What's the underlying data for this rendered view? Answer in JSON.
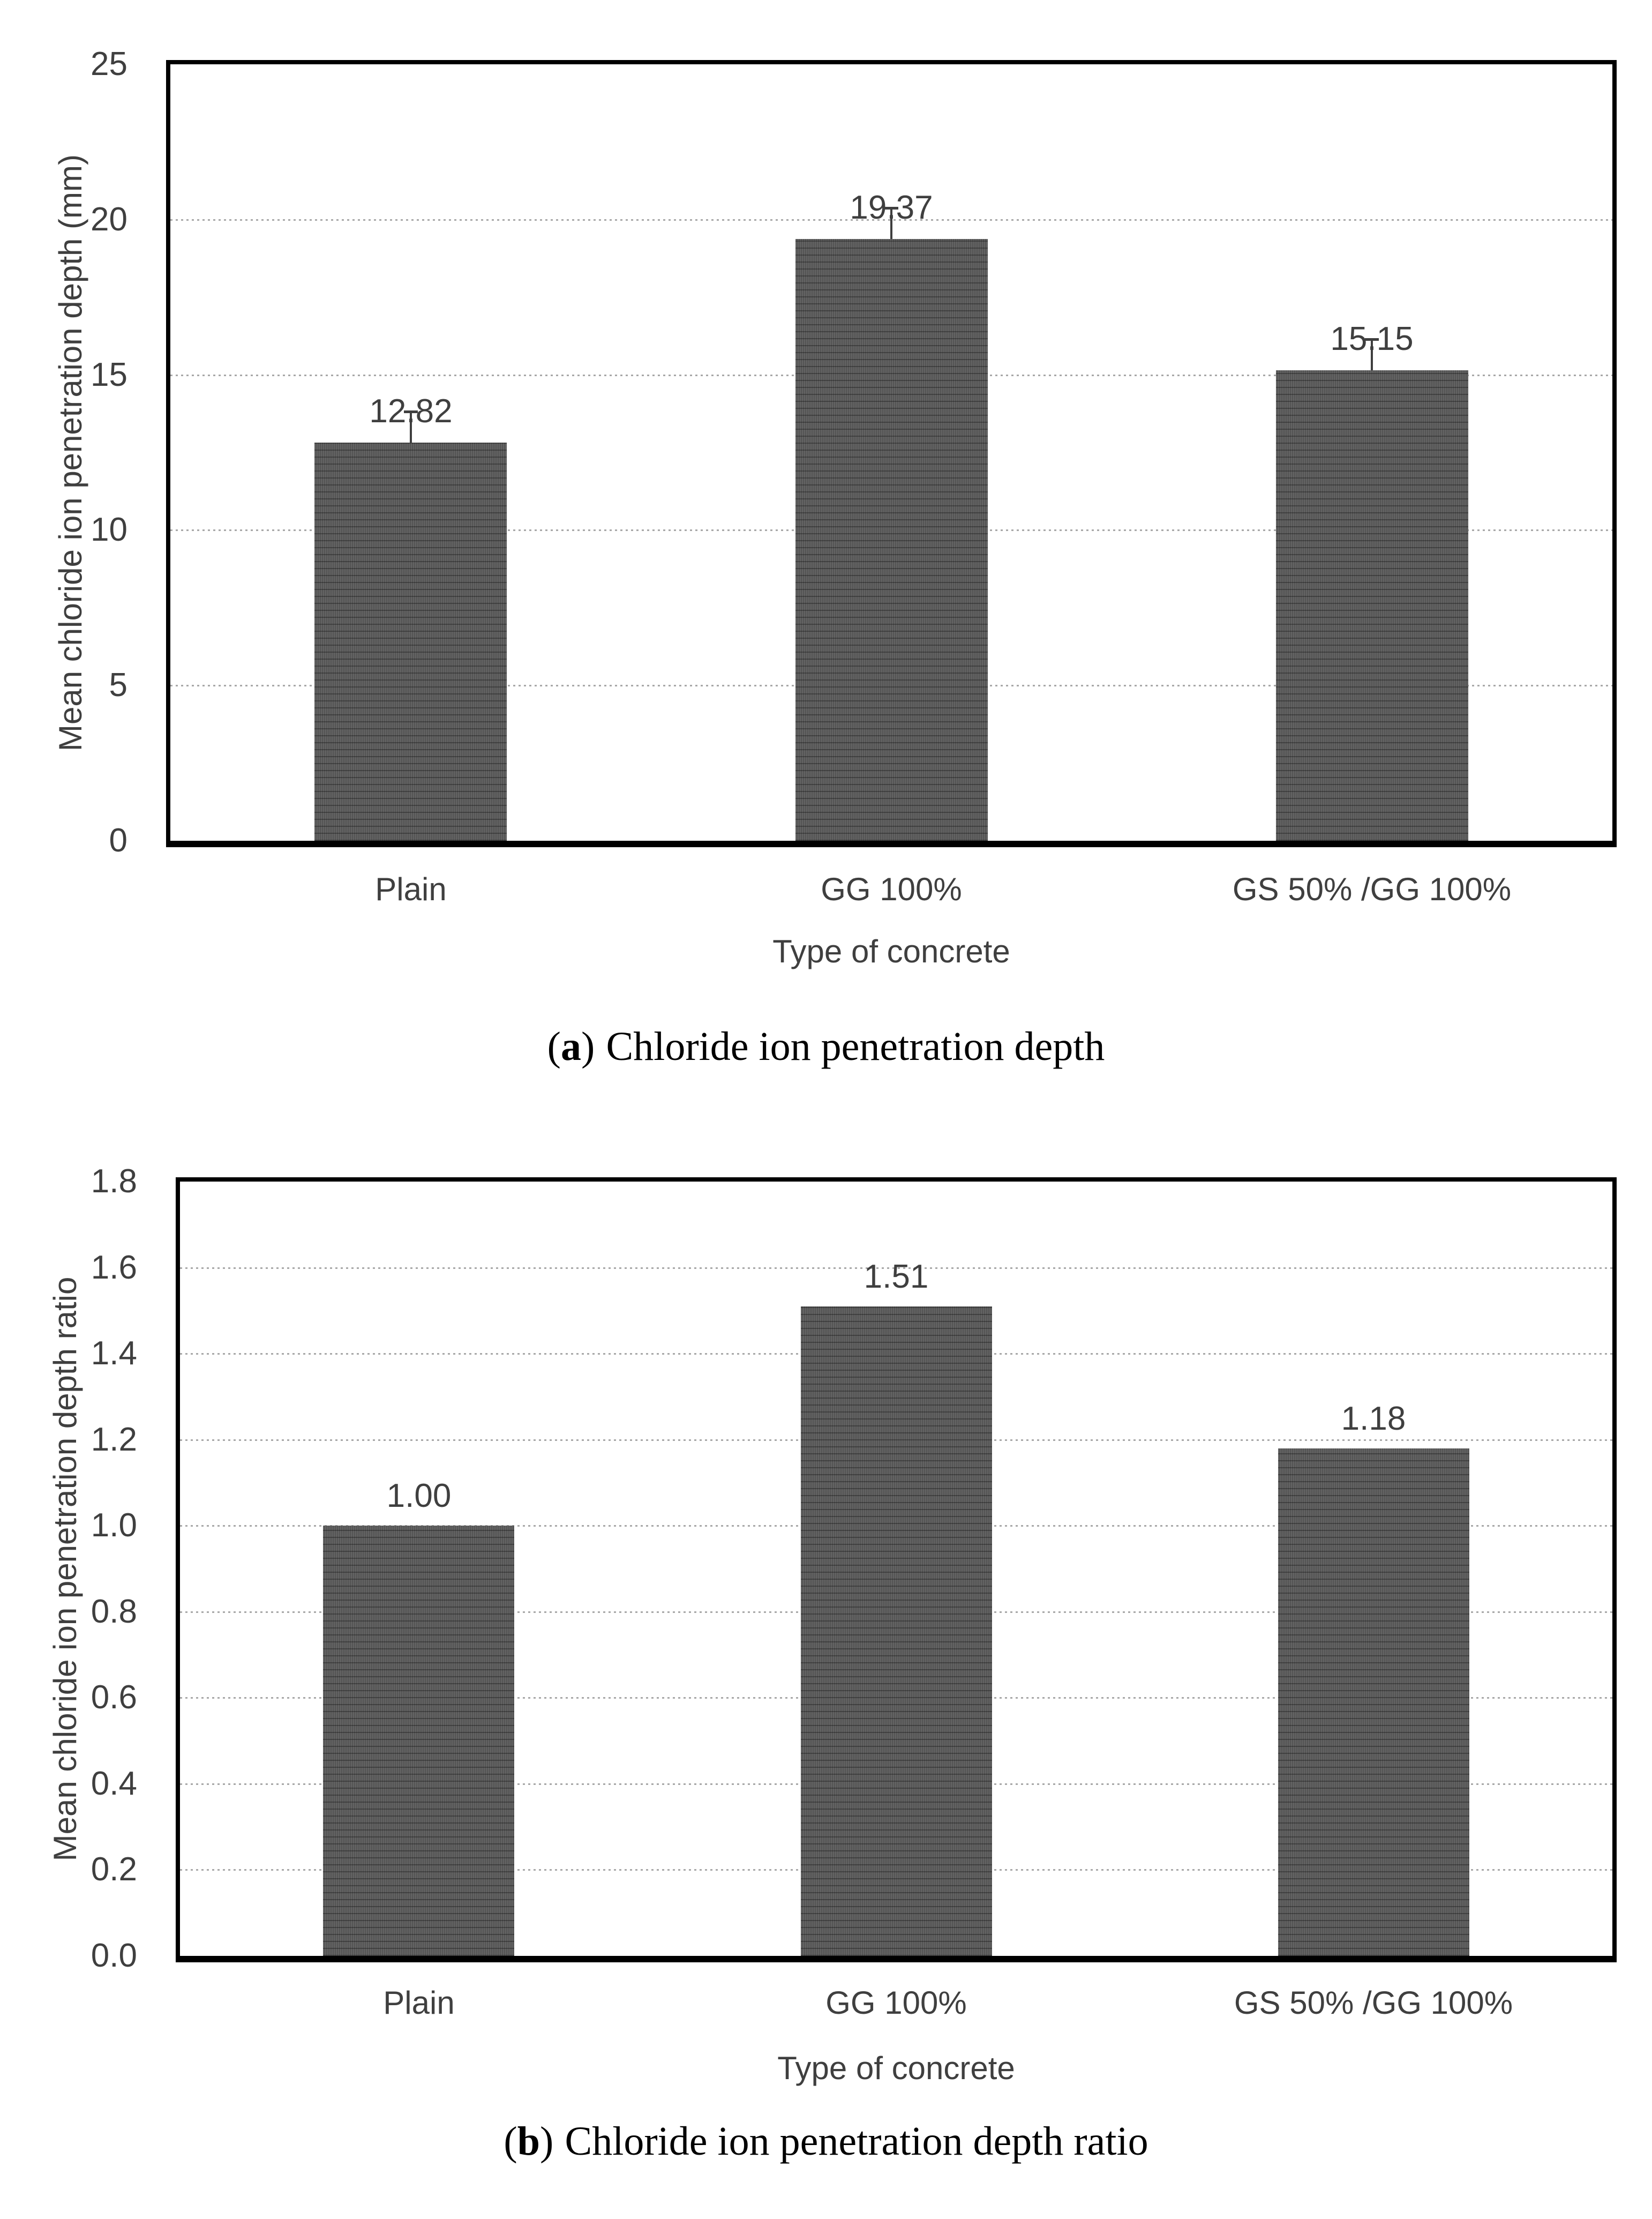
{
  "page": {
    "background": "#ffffff"
  },
  "chart_data": [
    {
      "id": "a",
      "type": "bar",
      "categories": [
        "Plain",
        "GG 100%",
        "GS 50% /GG 100%"
      ],
      "values": [
        12.82,
        19.37,
        15.15
      ],
      "data_labels": [
        "12.82",
        "19.37",
        "15.15"
      ],
      "errors_upper": [
        1.0,
        1.0,
        1.0
      ],
      "ylabel": "Mean chloride ion penetration depth (mm)",
      "xlabel": "Type of concrete",
      "ylim": [
        0,
        25
      ],
      "ytick_step": 5,
      "ytick_labels": [
        "0",
        "5",
        "10",
        "15",
        "20",
        "25"
      ],
      "grid": true,
      "legend_position": "none",
      "bar_color": "#585858",
      "caption": {
        "open": "(",
        "letter": "a",
        "close": ")",
        "text": "Chloride ion penetration depth"
      }
    },
    {
      "id": "b",
      "type": "bar",
      "categories": [
        "Plain",
        "GG 100%",
        "GS 50% /GG 100%"
      ],
      "values": [
        1.0,
        1.51,
        1.18
      ],
      "data_labels": [
        "1.00",
        "1.51",
        "1.18"
      ],
      "errors_upper": null,
      "ylabel": "Mean chloride ion penetration depth ratio",
      "xlabel": "Type of concrete",
      "ylim": [
        0,
        1.8
      ],
      "ytick_step": 0.2,
      "ytick_labels": [
        "0.0",
        "0.2",
        "0.4",
        "0.6",
        "0.8",
        "1.0",
        "1.2",
        "1.4",
        "1.6",
        "1.8"
      ],
      "grid": true,
      "legend_position": "none",
      "bar_color": "#585858",
      "caption": {
        "open": "(",
        "letter": "b",
        "close": ")",
        "text": "Chloride ion penetration depth ratio"
      }
    }
  ]
}
